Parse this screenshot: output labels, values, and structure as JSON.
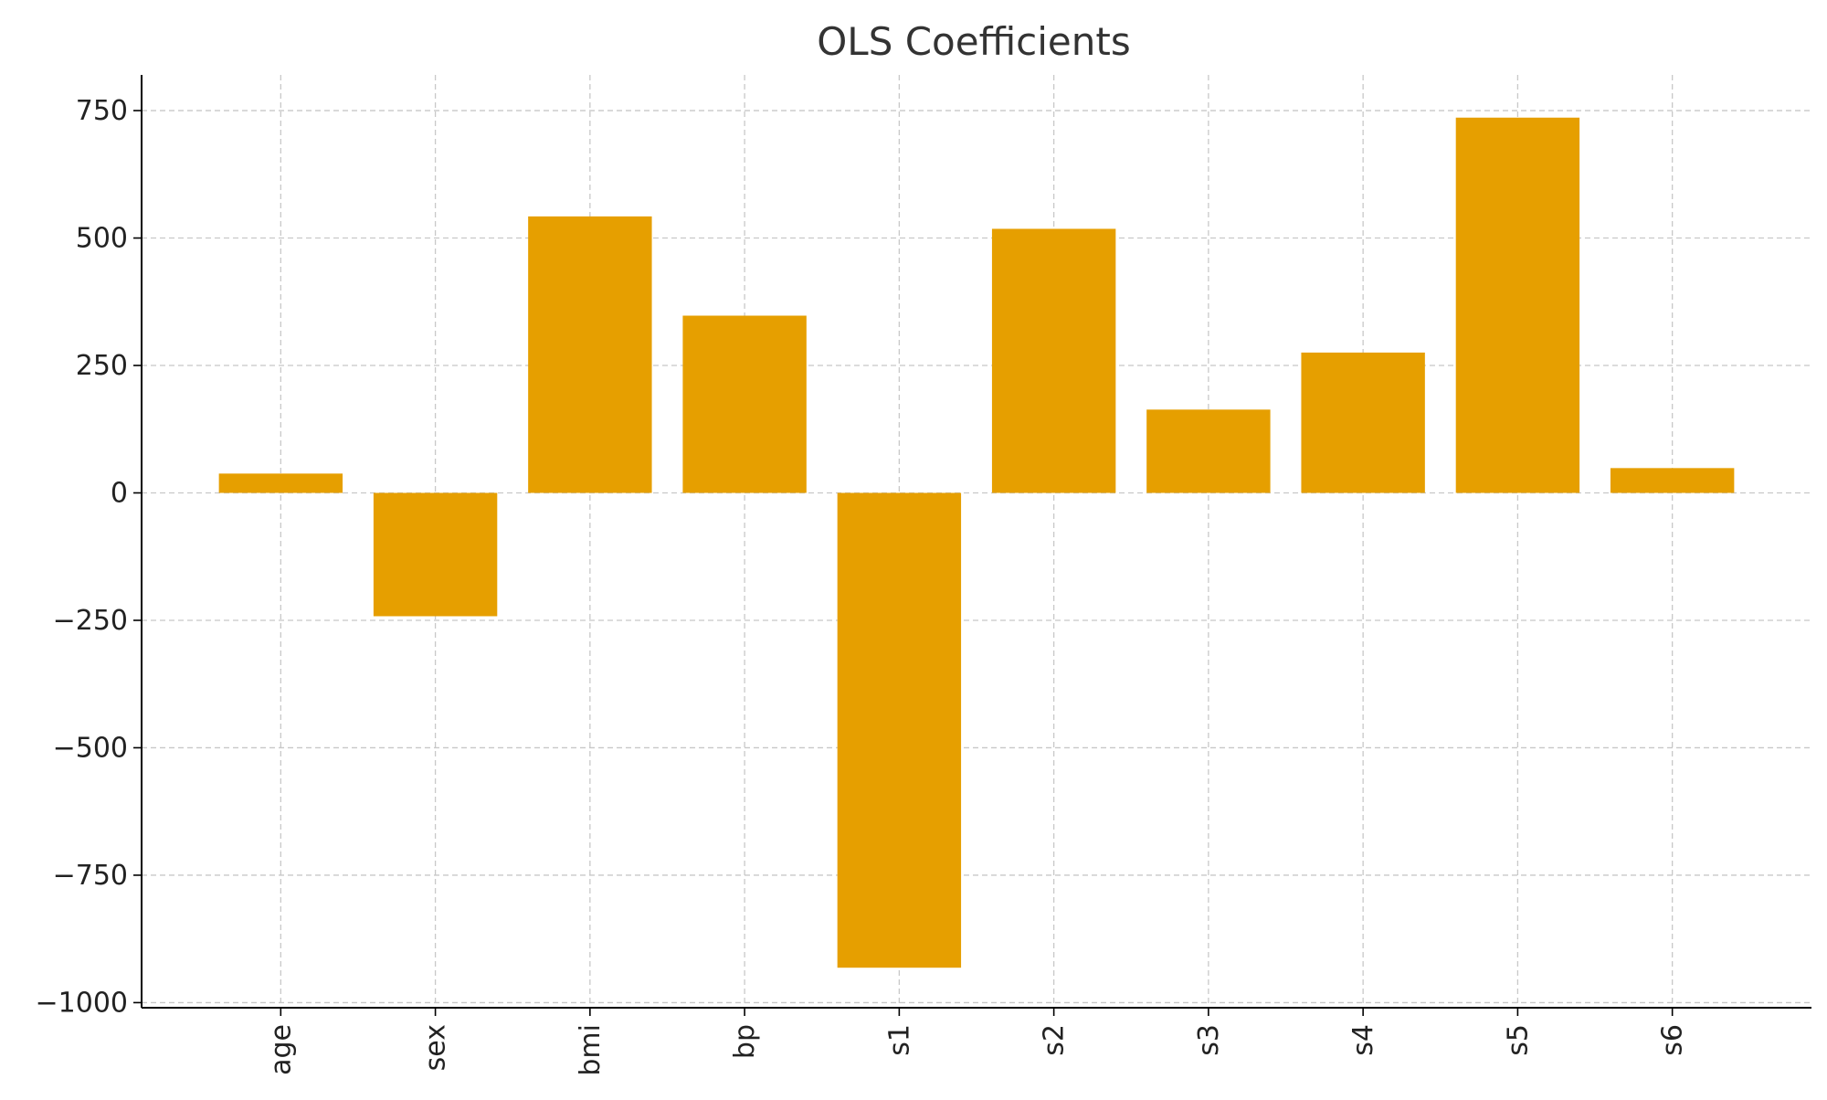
{
  "chart_data": {
    "type": "bar",
    "title": "OLS Coefficients",
    "xlabel": "",
    "ylabel": "",
    "categories": [
      "age",
      "sex",
      "bmi",
      "bp",
      "s1",
      "s2",
      "s3",
      "s4",
      "s5",
      "s6"
    ],
    "values": [
      37.9,
      -241.96,
      542.43,
      347.7,
      -931.49,
      518.06,
      163.42,
      275.32,
      736.2,
      48.67
    ],
    "ylim": [
      -1010,
      820
    ],
    "yticks": [
      -1000,
      -750,
      -500,
      -250,
      0,
      250,
      500,
      750
    ],
    "ytick_labels": [
      "−1000",
      "−750",
      "−500",
      "−250",
      "0",
      "250",
      "500",
      "750"
    ],
    "x_tick_rotation": "vertical",
    "grid": true,
    "grid_style": "dashed",
    "legend": "none",
    "colors": {
      "bar": "#E69F00",
      "grid": "#c8c8c8",
      "axis": "#000000",
      "text": "#222222",
      "title": "#333333"
    }
  }
}
